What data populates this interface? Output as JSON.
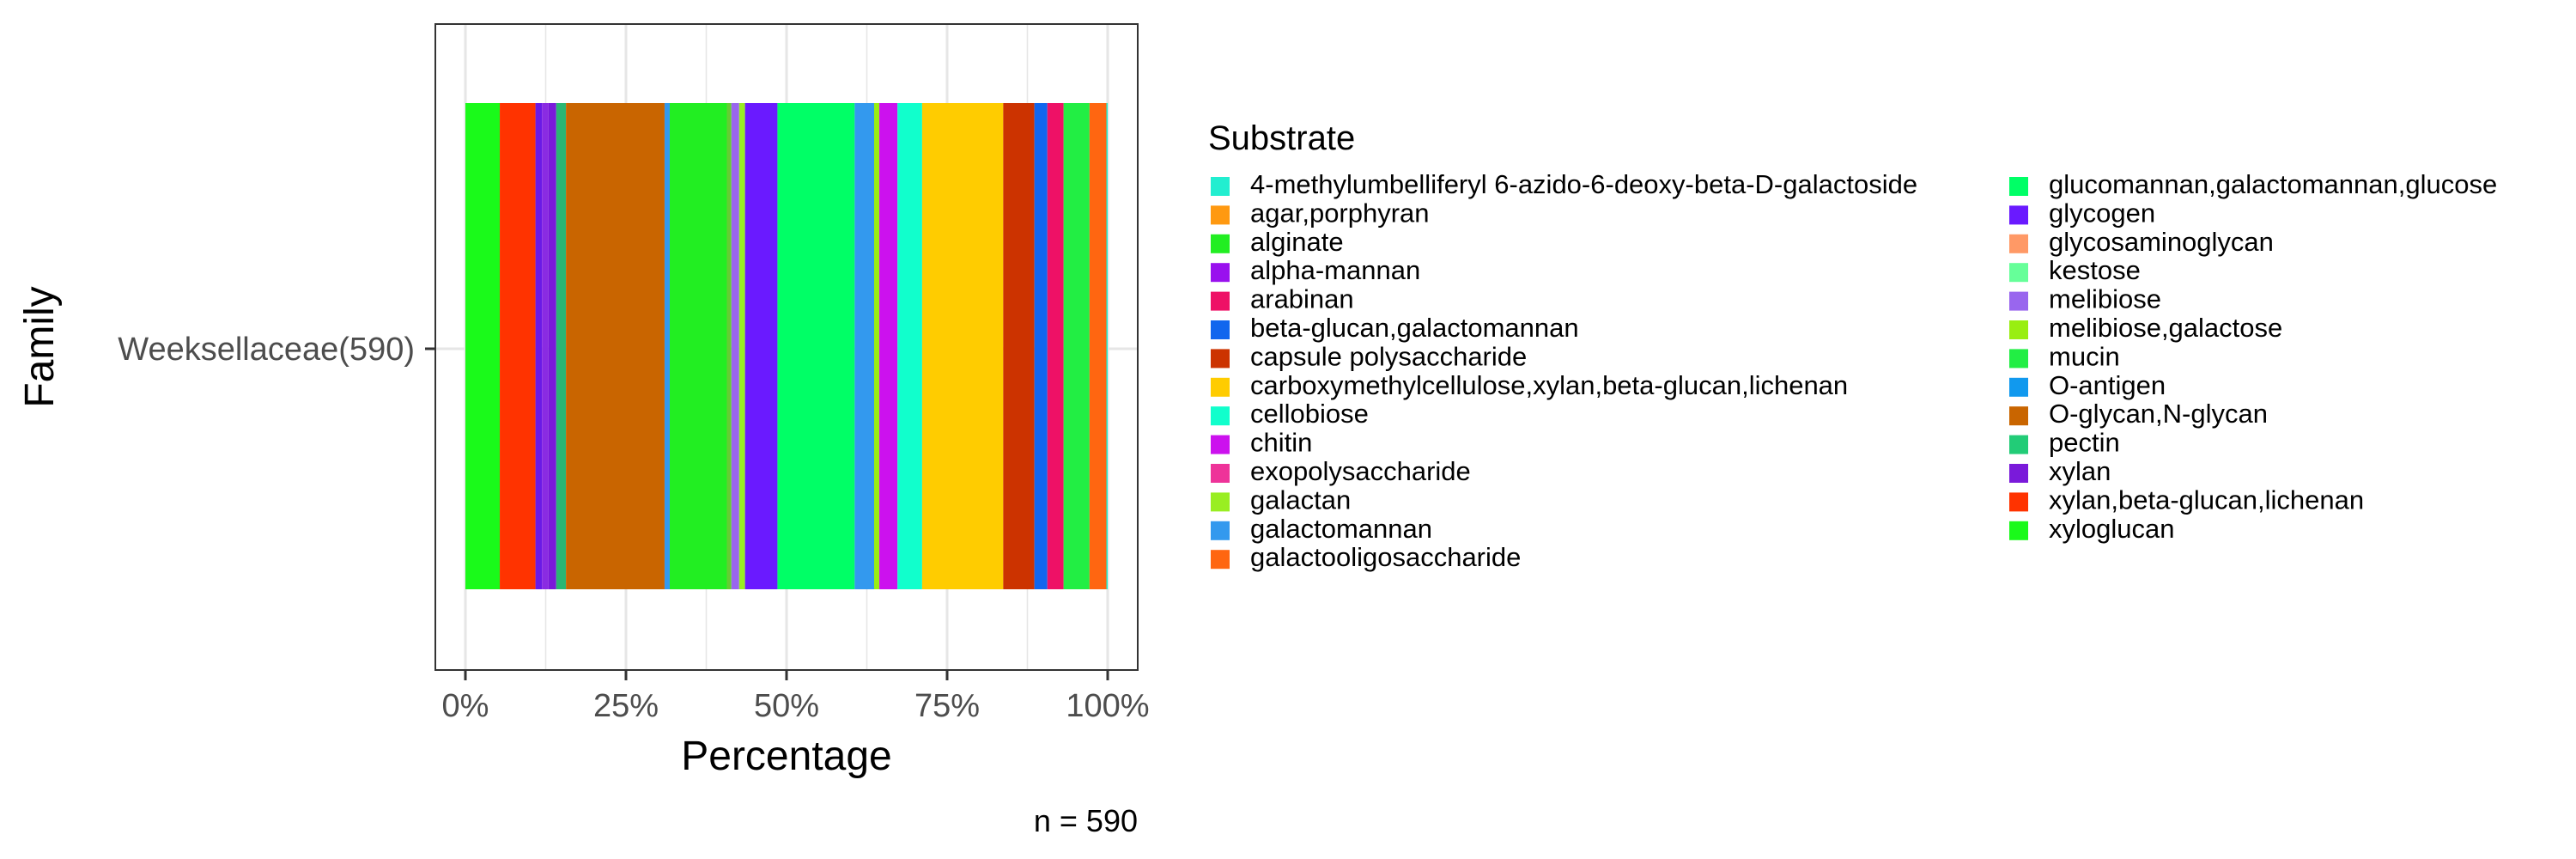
{
  "chart_data": {
    "type": "bar",
    "orientation": "horizontal",
    "stacked": "percent",
    "xlabel": "Percentage",
    "ylabel": "Family",
    "xlim": [
      0,
      100
    ],
    "x_ticks": [
      "0%",
      "25%",
      "50%",
      "75%",
      "100%"
    ],
    "categories": [
      "Weeksellaceae(590)"
    ],
    "grid": true,
    "legend_title": "Substrate",
    "legend_position": "right",
    "caption": "n = 590",
    "segments": [
      {
        "name": "xyloglucan",
        "value": 5.3,
        "color": "#1AFA1A"
      },
      {
        "name": "xylan,beta-glucan,lichenan",
        "value": 5.5,
        "color": "#FF3300"
      },
      {
        "name": "glycogen",
        "value": 1.0,
        "color": "#6A1AE6"
      },
      {
        "name": "pectin",
        "value": 1.0,
        "color": "#8A2BE2"
      },
      {
        "name": "xylan",
        "value": 1.2,
        "color": "#7A1ADA"
      },
      {
        "name": "O-glycan,N-glycan",
        "value": 1.5,
        "color": "#2BB673"
      },
      {
        "name": "O-glycan,N-glycan",
        "value": 15.2,
        "color": "#C96500"
      },
      {
        "name": "galactomannan",
        "value": 0.8,
        "color": "#3399EE"
      },
      {
        "name": "alginate",
        "value": 8.8,
        "color": "#22EE22"
      },
      {
        "name": "melibiose",
        "value": 0.7,
        "color": "#66CC33"
      },
      {
        "name": "melibiose",
        "value": 1.2,
        "color": "#9966EE"
      },
      {
        "name": "galactan",
        "value": 0.9,
        "color": "#99EE22"
      },
      {
        "name": "glycogen",
        "value": 5.0,
        "color": "#6A1AFF"
      },
      {
        "name": "glucomannan,galactomannan,glucose",
        "value": 11.9,
        "color": "#00FF66"
      },
      {
        "name": "galactomannan",
        "value": 3.0,
        "color": "#3399EE"
      },
      {
        "name": "melibiose,galactose",
        "value": 0.8,
        "color": "#99EE11"
      },
      {
        "name": "chitin",
        "value": 2.8,
        "color": "#CC11EE"
      },
      {
        "name": "cellobiose",
        "value": 3.8,
        "color": "#11FFCC"
      },
      {
        "name": "carboxymethylcellulose,xylan,beta-glucan,lichenan",
        "value": 12.5,
        "color": "#FFCC00"
      },
      {
        "name": "capsule polysaccharide",
        "value": 4.8,
        "color": "#CC3300"
      },
      {
        "name": "beta-glucan,galactomannan",
        "value": 2.0,
        "color": "#1166EE"
      },
      {
        "name": "arabinan",
        "value": 2.5,
        "color": "#EE1166"
      },
      {
        "name": "mucin",
        "value": 4.0,
        "color": "#22EE44"
      },
      {
        "name": "galactooligosaccharide",
        "value": 2.6,
        "color": "#FF6611"
      },
      {
        "name": "4-methylumbelliferyl 6-azido-6-deoxy-beta-D-galactoside",
        "value": 0.2,
        "color": "#22EED0"
      }
    ],
    "legend_items": [
      {
        "label": "4-methylumbelliferyl 6-azido-6-deoxy-beta-D-galactoside",
        "color": "#22EED0"
      },
      {
        "label": "agar,porphyran",
        "color": "#FF9911"
      },
      {
        "label": "alginate",
        "color": "#22EE22"
      },
      {
        "label": "alpha-mannan",
        "color": "#9911EE"
      },
      {
        "label": "arabinan",
        "color": "#EE1166"
      },
      {
        "label": "beta-glucan,galactomannan",
        "color": "#1166EE"
      },
      {
        "label": "capsule polysaccharide",
        "color": "#CC3300"
      },
      {
        "label": "carboxymethylcellulose,xylan,beta-glucan,lichenan",
        "color": "#FFCC00"
      },
      {
        "label": "cellobiose",
        "color": "#11FFCC"
      },
      {
        "label": "chitin",
        "color": "#CC11EE"
      },
      {
        "label": "exopolysaccharide",
        "color": "#EE3399"
      },
      {
        "label": "galactan",
        "color": "#99EE22"
      },
      {
        "label": "galactomannan",
        "color": "#3399EE"
      },
      {
        "label": "galactooligosaccharide",
        "color": "#FF6611"
      },
      {
        "label": "glucomannan,galactomannan,glucose",
        "color": "#00FF66"
      },
      {
        "label": "glycogen",
        "color": "#6A1AFF"
      },
      {
        "label": "glycosaminoglycan",
        "color": "#FF9966"
      },
      {
        "label": "kestose",
        "color": "#66FF99"
      },
      {
        "label": "melibiose",
        "color": "#9966EE"
      },
      {
        "label": "melibiose,galactose",
        "color": "#99EE11"
      },
      {
        "label": "mucin",
        "color": "#22EE44"
      },
      {
        "label": "O-antigen",
        "color": "#1199EE"
      },
      {
        "label": "O-glycan,N-glycan",
        "color": "#C96500"
      },
      {
        "label": "pectin",
        "color": "#22CC77"
      },
      {
        "label": "xylan",
        "color": "#7A1ADA"
      },
      {
        "label": "xylan,beta-glucan,lichenan",
        "color": "#FF3300"
      },
      {
        "label": "xyloglucan",
        "color": "#1AFA1A"
      }
    ]
  }
}
